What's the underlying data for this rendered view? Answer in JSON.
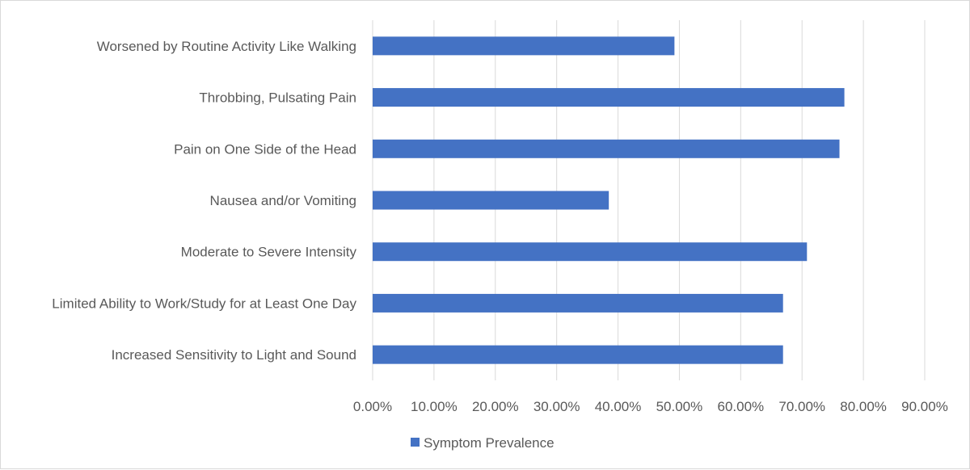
{
  "chart_data": {
    "type": "bar",
    "orientation": "horizontal",
    "categories": [
      "Worsened by Routine Activity Like Walking",
      "Throbbing, Pulsating Pain",
      "Pain on One Side of the Head",
      "Nausea and/or Vomiting",
      "Moderate to Severe Intensity",
      "Limited Ability to Work/Study for at Least One Day",
      "Increased Sensitivity to Light and Sound"
    ],
    "series": [
      {
        "name": "Symptom Prevalence",
        "values": [
          49.2,
          76.9,
          76.1,
          38.5,
          70.8,
          66.9,
          66.9
        ]
      }
    ],
    "xlim": [
      0,
      90
    ],
    "xticks": [
      "0.00%",
      "10.00%",
      "20.00%",
      "30.00%",
      "40.00%",
      "50.00%",
      "60.00%",
      "70.00%",
      "80.00%",
      "90.00%"
    ],
    "title": "",
    "xlabel": "",
    "ylabel": "",
    "grid": "vertical",
    "legend_position": "bottom",
    "colors": {
      "bar": "#4472c4",
      "grid": "#d9d9d9",
      "text": "#595959"
    }
  }
}
